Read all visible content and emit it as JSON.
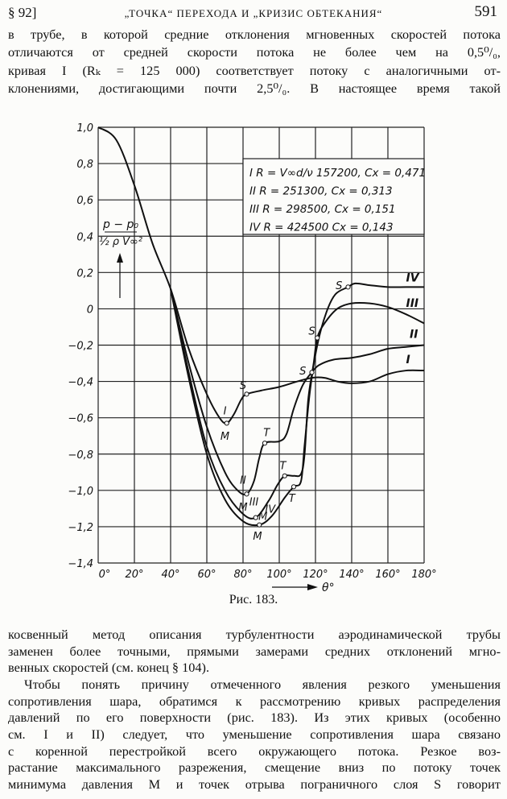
{
  "header": {
    "section": "§ 92]",
    "title": "„ТОЧКА“ ПЕРЕХОДА И „КРИЗИС ОБТЕКАНИЯ“",
    "page_number": "591"
  },
  "text_top": [
    "в трубе, в которой средние отклонения мгновенных скоростей потока",
    "отличаются от средней скорости потока не более чем на 0,5⁰/₀,",
    "кривая I (Rₖ = 125 000) соответствует потоку с аналогичными от-",
    "клонениями, достигающими почти 2,5⁰/₀. В настоящее время такой"
  ],
  "caption": "Рис. 183.",
  "text_bottom": [
    "косвенный метод описания турбулентности аэродинамической трубы",
    "заменен более точными, прямыми замерами средних отклонений мгно-",
    "венных скоростей (см. конец § 104).",
    "Чтобы понять причину отмеченного явления резкого уменьшения",
    "сопротивления шара, обратимся к рассмотрению кривых распределения",
    "давлений по его поверхности (рис. 183). Из этих кривых (особенно",
    "см. I и II) следует, что уменьшение сопротивления шара связано",
    "с коренной перестройкой всего окружающего потока. Резкое воз-",
    "растание максимального разрежения, смещение вниз по потоку точек",
    "минимума давления M и точек отрыва пограничного слоя S говорит"
  ],
  "chart_data": {
    "type": "line",
    "xlabel": "θ°",
    "ylabel_num": "p − p₀",
    "ylabel_den": "½ ρ V∞²",
    "xlim": [
      0,
      180
    ],
    "ylim": [
      -1.4,
      1.0
    ],
    "grid": true,
    "xticks": [
      "0°",
      "20°",
      "40°",
      "60°",
      "80°",
      "100°",
      "120°",
      "140°",
      "160°",
      "180°"
    ],
    "yticks": [
      "1,0",
      "0,8",
      "0,6",
      "0,4",
      "0,2",
      "0",
      "−0,2",
      "−0,4",
      "−0,6",
      "−0,8",
      "−1,0",
      "−1,2",
      "−1,4"
    ],
    "legend": [
      "I  R = V∞d/ν  157200,  Cx = 0,471",
      "II  R = 251300,  Cx = 0,313",
      "III  R = 298500,  Cx = 0,151",
      "IV  R = 424500  Cx = 0,143"
    ],
    "legend_placement": "top-right",
    "series": [
      {
        "name": "I",
        "label_at": [
          170,
          -0.3
        ],
        "points": [
          [
            0,
            1.0
          ],
          [
            10,
            0.93
          ],
          [
            20,
            0.68
          ],
          [
            30,
            0.36
          ],
          [
            40,
            0.11
          ],
          [
            50,
            -0.22
          ],
          [
            60,
            -0.47
          ],
          [
            67,
            -0.6
          ],
          [
            71,
            -0.63
          ],
          [
            75,
            -0.58
          ],
          [
            79,
            -0.5
          ],
          [
            82,
            -0.47
          ],
          [
            90,
            -0.45
          ],
          [
            100,
            -0.43
          ],
          [
            110,
            -0.4
          ],
          [
            118,
            -0.38
          ],
          [
            125,
            -0.38
          ],
          [
            132,
            -0.4
          ],
          [
            140,
            -0.41
          ],
          [
            150,
            -0.4
          ],
          [
            160,
            -0.36
          ],
          [
            170,
            -0.34
          ],
          [
            180,
            -0.34
          ]
        ]
      },
      {
        "name": "II",
        "label_at": [
          172,
          -0.16
        ],
        "points": [
          [
            40,
            0.11
          ],
          [
            50,
            -0.3
          ],
          [
            60,
            -0.65
          ],
          [
            70,
            -0.9
          ],
          [
            77,
            -1.0
          ],
          [
            82,
            -1.02
          ],
          [
            86,
            -0.95
          ],
          [
            89,
            -0.82
          ],
          [
            92,
            -0.74
          ],
          [
            100,
            -0.73
          ],
          [
            104,
            -0.69
          ],
          [
            108,
            -0.55
          ],
          [
            113,
            -0.42
          ],
          [
            118,
            -0.35
          ],
          [
            122,
            -0.31
          ],
          [
            130,
            -0.28
          ],
          [
            140,
            -0.27
          ],
          [
            150,
            -0.25
          ],
          [
            160,
            -0.22
          ],
          [
            170,
            -0.21
          ],
          [
            180,
            -0.2
          ]
        ]
      },
      {
        "name": "III",
        "label_at": [
          170,
          0.01
        ],
        "points": [
          [
            40,
            0.11
          ],
          [
            50,
            -0.35
          ],
          [
            60,
            -0.76
          ],
          [
            70,
            -1.0
          ],
          [
            80,
            -1.13
          ],
          [
            87,
            -1.15
          ],
          [
            94,
            -1.06
          ],
          [
            99,
            -0.97
          ],
          [
            103,
            -0.92
          ],
          [
            108,
            -0.92
          ],
          [
            112,
            -0.91
          ],
          [
            114,
            -0.8
          ],
          [
            116,
            -0.5
          ],
          [
            119,
            -0.3
          ],
          [
            121,
            -0.16
          ],
          [
            125,
            -0.08
          ],
          [
            132,
            0.0
          ],
          [
            140,
            0.03
          ],
          [
            150,
            0.03
          ],
          [
            160,
            0.01
          ],
          [
            170,
            -0.03
          ],
          [
            180,
            -0.08
          ]
        ]
      },
      {
        "name": "IV",
        "label_at": [
          170,
          0.15
        ],
        "points": [
          [
            40,
            0.11
          ],
          [
            50,
            -0.38
          ],
          [
            60,
            -0.8
          ],
          [
            70,
            -1.05
          ],
          [
            80,
            -1.17
          ],
          [
            89,
            -1.19
          ],
          [
            96,
            -1.14
          ],
          [
            103,
            -1.04
          ],
          [
            108,
            -0.98
          ],
          [
            112,
            -0.95
          ],
          [
            114,
            -0.75
          ],
          [
            117,
            -0.45
          ],
          [
            121,
            -0.2
          ],
          [
            126,
            -0.02
          ],
          [
            131,
            0.08
          ],
          [
            138,
            0.12
          ],
          [
            142,
            0.14
          ],
          [
            150,
            0.13
          ],
          [
            160,
            0.12
          ],
          [
            170,
            0.12
          ],
          [
            180,
            0.12
          ]
        ]
      }
    ],
    "annotations": [
      {
        "text": "S",
        "x": 82,
        "y": -0.47,
        "lx": 80,
        "ly": -0.42
      },
      {
        "text": "M",
        "x": 71,
        "y": -0.63,
        "lx": 70,
        "ly": -0.7
      },
      {
        "text": "I",
        "x": 71,
        "y": -0.63,
        "lx": 70,
        "ly": -0.56
      },
      {
        "text": "M",
        "x": 82,
        "y": -1.02,
        "lx": 80,
        "ly": -1.09
      },
      {
        "text": "II",
        "x": 82,
        "y": -1.02,
        "lx": 80,
        "ly": -0.94
      },
      {
        "text": "T",
        "x": 92,
        "y": -0.74,
        "lx": 93,
        "ly": -0.68
      },
      {
        "text": "III",
        "x": 87,
        "y": -1.15,
        "lx": 86,
        "ly": -1.06
      },
      {
        "text": "M",
        "x": 87,
        "y": -1.15,
        "lx": 91,
        "ly": -1.14
      },
      {
        "text": "IV",
        "x": 89,
        "y": -1.19,
        "lx": 95,
        "ly": -1.1
      },
      {
        "text": "M",
        "x": 89,
        "y": -1.19,
        "lx": 88,
        "ly": -1.25
      },
      {
        "text": "T",
        "x": 103,
        "y": -0.92,
        "lx": 102,
        "ly": -0.86
      },
      {
        "text": "T",
        "x": 108,
        "y": -0.98,
        "lx": 107,
        "ly": -1.04
      },
      {
        "text": "S",
        "x": 118,
        "y": -0.35,
        "lx": 113,
        "ly": -0.34
      },
      {
        "text": "S",
        "x": 121,
        "y": -0.16,
        "lx": 118,
        "ly": -0.12
      },
      {
        "text": "S",
        "x": 138,
        "y": 0.12,
        "lx": 133,
        "ly": 0.13
      }
    ]
  }
}
